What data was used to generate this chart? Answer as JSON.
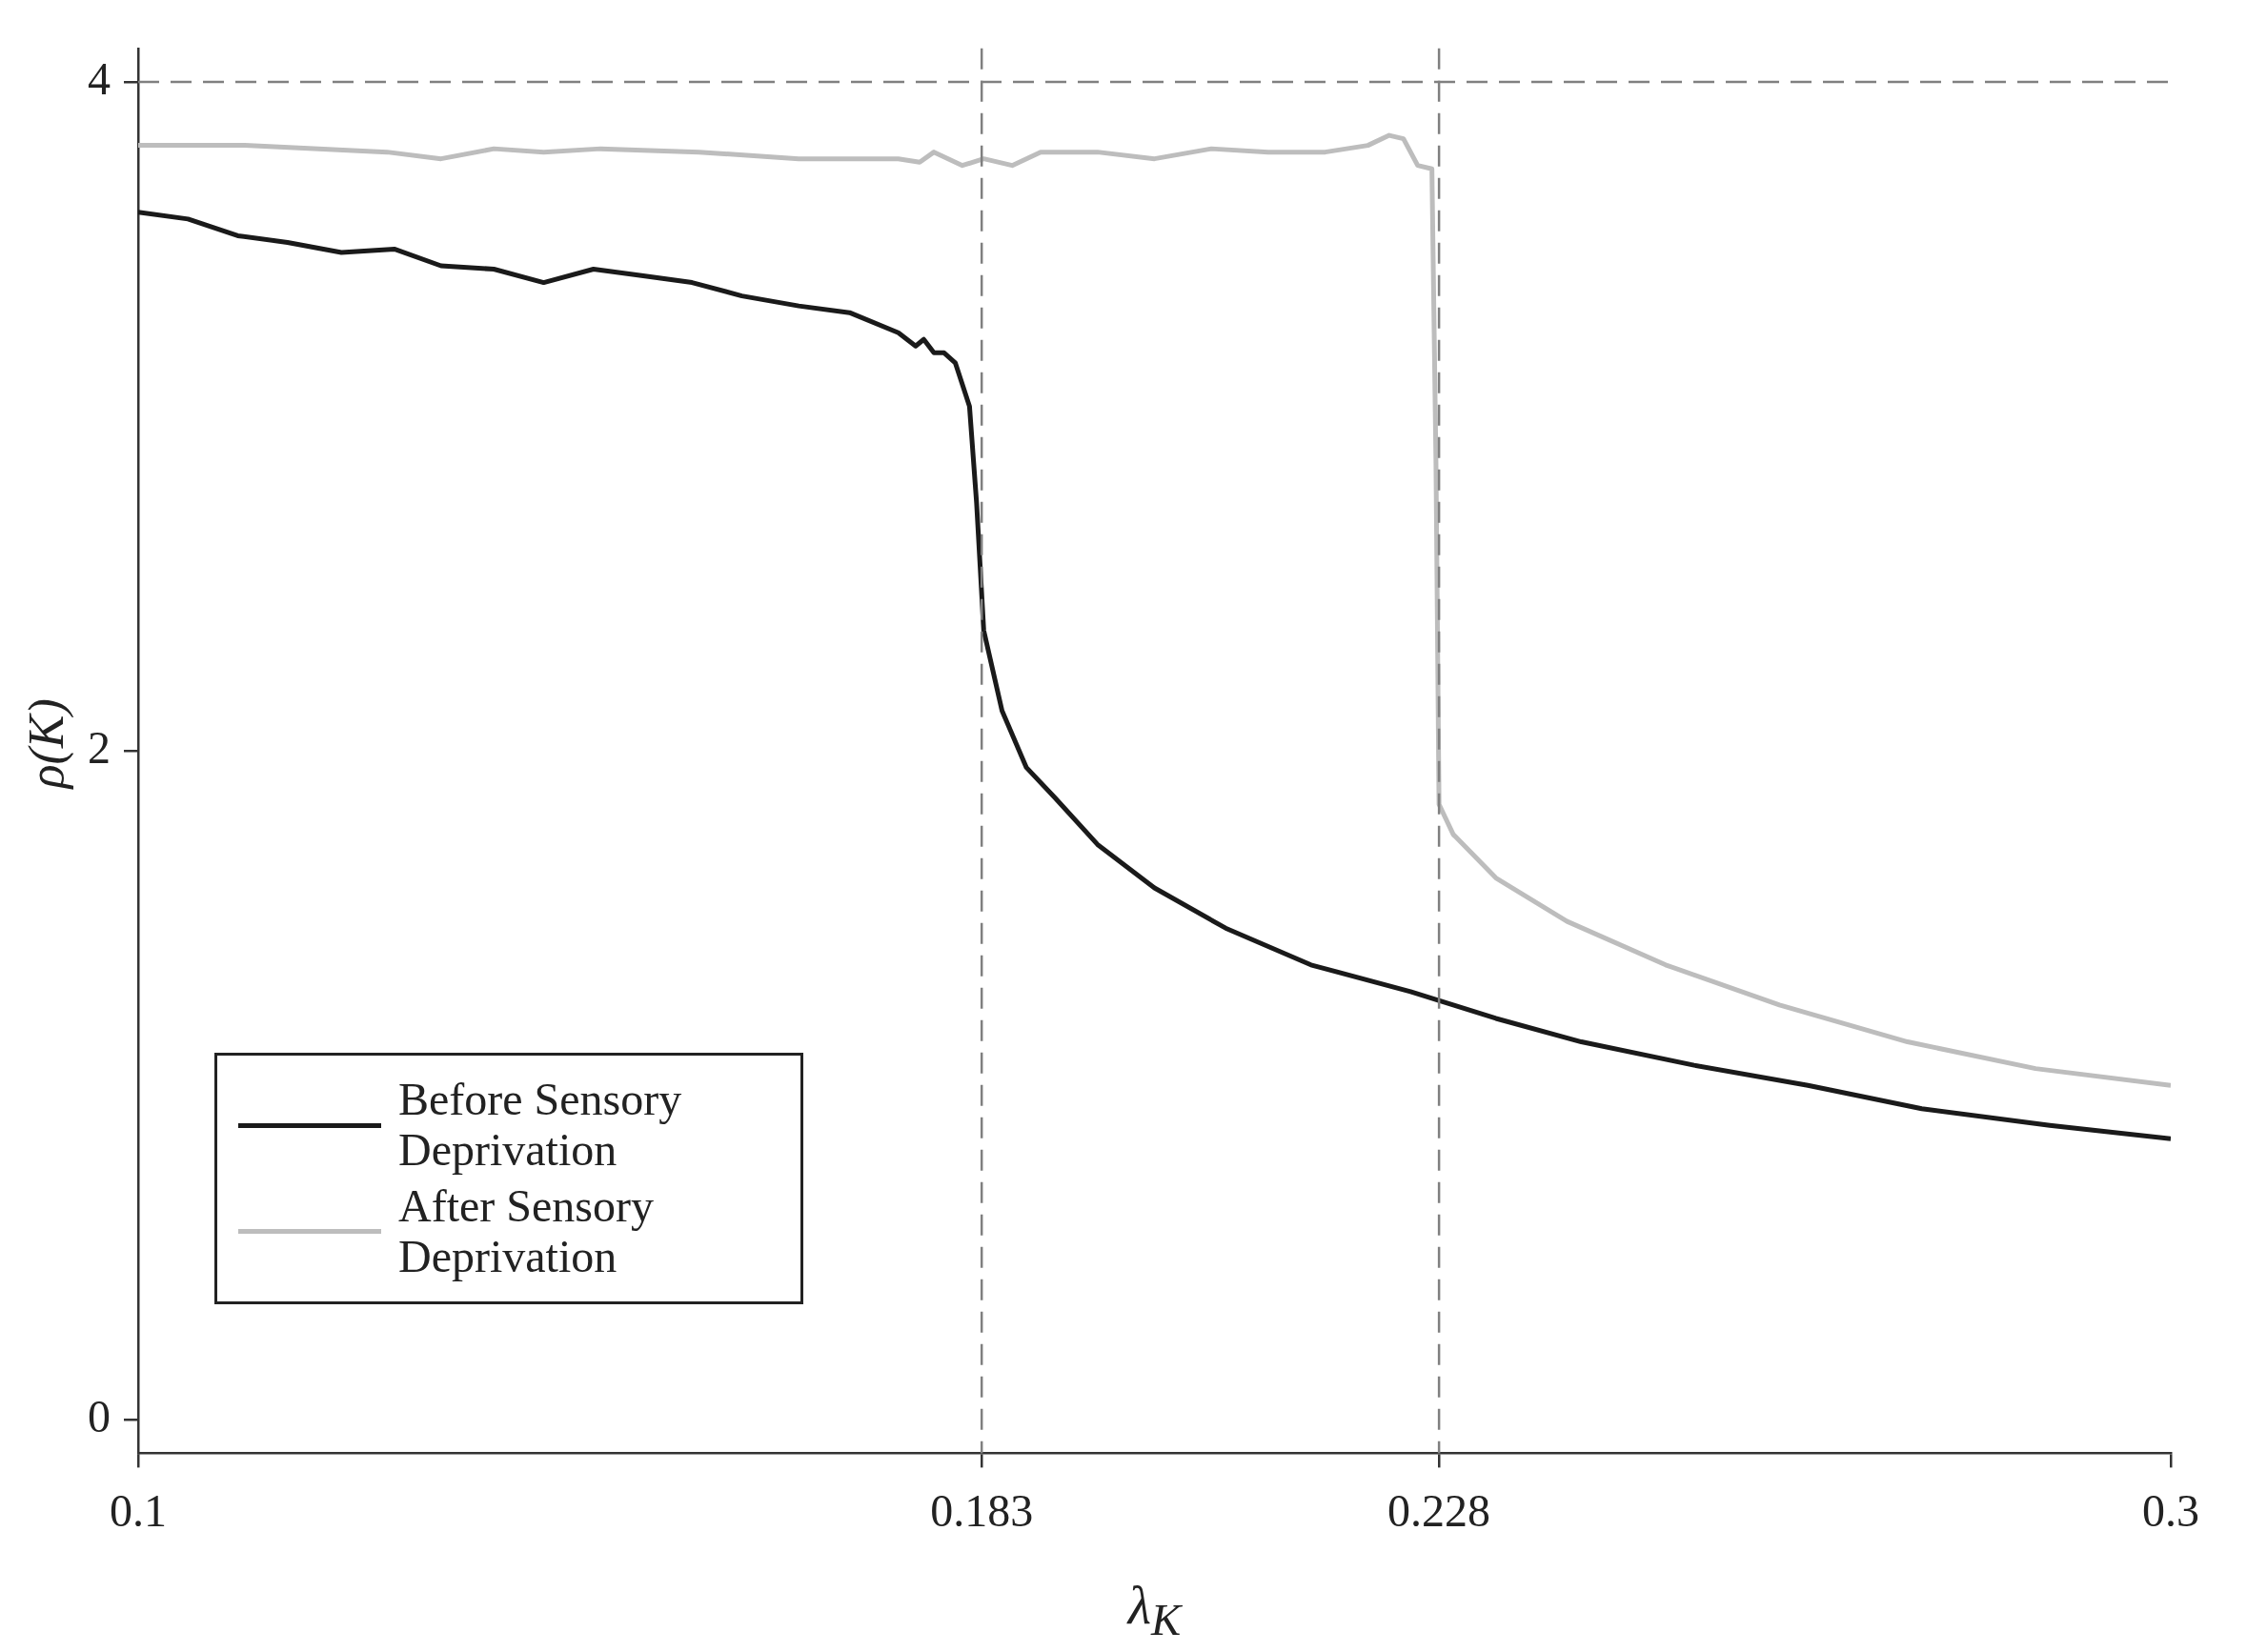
{
  "chart_data": {
    "type": "line",
    "xlabel": "λ$_{K}$",
    "ylabel": "ρ(K)",
    "xlim": [
      0.1,
      0.3
    ],
    "xticks": [
      0.1,
      0.183,
      0.228,
      0.3
    ],
    "ylim": [
      -0.1,
      4.1
    ],
    "yticks": [
      0,
      2,
      4
    ],
    "grid": false,
    "legend": "bottom left",
    "line_style": "solid",
    "marker": "none",
    "ref_lines": [
      {
        "axis": "x",
        "value": 0.183,
        "color": "#808080",
        "line_style": "dashed"
      },
      {
        "axis": "x",
        "value": 0.228,
        "color": "#808080",
        "line_style": "dashed"
      },
      {
        "axis": "y",
        "value": 4,
        "color": "#808080",
        "line_style": "dashed"
      }
    ],
    "series": [
      {
        "name": "Before Sensory Deprivation",
        "color": "#1a1a1a",
        "x": [
          0.1,
          0.1049,
          0.1098,
          0.1147,
          0.12,
          0.1252,
          0.1298,
          0.135,
          0.1399,
          0.1448,
          0.1497,
          0.1545,
          0.1594,
          0.165,
          0.17,
          0.1748,
          0.1765,
          0.1773,
          0.1783,
          0.1793,
          0.1804,
          0.1818,
          0.1825,
          0.1832,
          0.1841,
          0.185,
          0.1874,
          0.1902,
          0.1944,
          0.2,
          0.207,
          0.2154,
          0.2252,
          0.2294,
          0.2336,
          0.242,
          0.2531,
          0.2643,
          0.2755,
          0.2881,
          0.3
        ],
        "values": [
          3.61,
          3.59,
          3.54,
          3.52,
          3.49,
          3.5,
          3.45,
          3.44,
          3.4,
          3.44,
          3.42,
          3.4,
          3.36,
          3.33,
          3.31,
          3.25,
          3.21,
          3.23,
          3.19,
          3.19,
          3.16,
          3.03,
          2.74,
          2.36,
          2.24,
          2.12,
          1.95,
          1.86,
          1.72,
          1.59,
          1.47,
          1.36,
          1.28,
          1.24,
          1.2,
          1.13,
          1.06,
          1.0,
          0.93,
          0.88,
          0.84
        ]
      },
      {
        "name": "After Sensory Deprivation",
        "color": "#bdbdbd",
        "x": [
          0.1,
          0.1105,
          0.1245,
          0.1298,
          0.135,
          0.1399,
          0.1455,
          0.1552,
          0.165,
          0.1748,
          0.1769,
          0.1783,
          0.1811,
          0.1832,
          0.186,
          0.1888,
          0.1944,
          0.2,
          0.2056,
          0.2112,
          0.2168,
          0.221,
          0.2231,
          0.2245,
          0.2259,
          0.2273,
          0.2277,
          0.228,
          0.2294,
          0.2336,
          0.2406,
          0.2503,
          0.2615,
          0.2741,
          0.2867,
          0.3
        ],
        "values": [
          3.81,
          3.81,
          3.79,
          3.77,
          3.8,
          3.79,
          3.8,
          3.79,
          3.77,
          3.77,
          3.76,
          3.79,
          3.75,
          3.77,
          3.75,
          3.79,
          3.79,
          3.77,
          3.8,
          3.79,
          3.79,
          3.81,
          3.84,
          3.83,
          3.75,
          3.74,
          2.86,
          1.84,
          1.75,
          1.62,
          1.49,
          1.36,
          1.24,
          1.13,
          1.05,
          1.0
        ]
      }
    ]
  }
}
